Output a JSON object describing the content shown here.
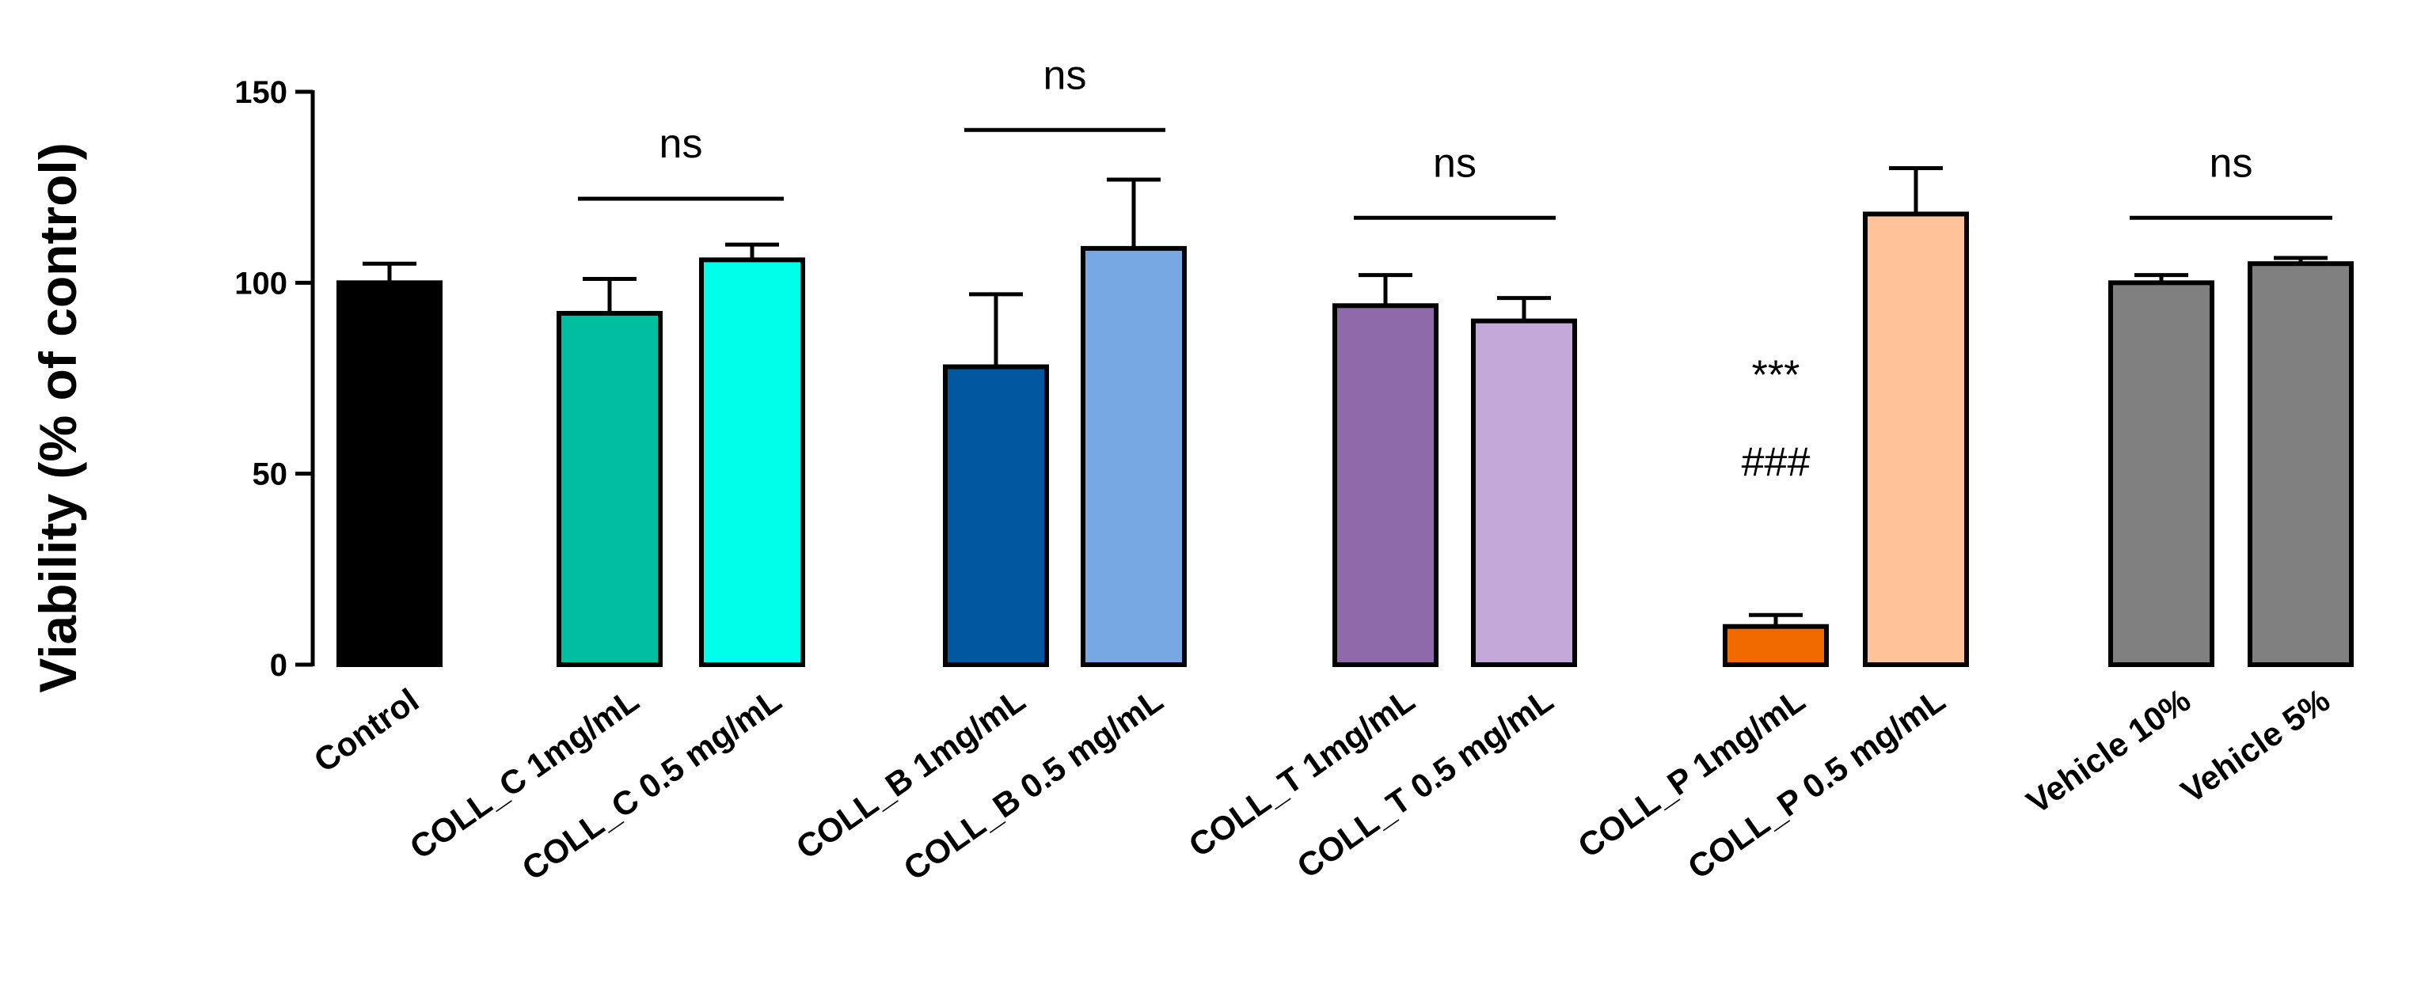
{
  "chart_data": {
    "type": "bar",
    "title": "",
    "xlabel": "",
    "ylabel": "Viability (% of control)",
    "ylim": [
      0,
      150
    ],
    "yticks": [
      0,
      50,
      100,
      150
    ],
    "grid": false,
    "bars": [
      {
        "category": "Control",
        "value": 100,
        "error": 5,
        "color": "#000000"
      },
      {
        "category": "COLL_C 1mg/mL",
        "value": 92,
        "error": 9,
        "color": "#00BFA0"
      },
      {
        "category": "COLL_C 0.5 mg/mL",
        "value": 106,
        "error": 4,
        "color": "#00FFE8"
      },
      {
        "category": "COLL_B 1mg/mL",
        "value": 78,
        "error": 19,
        "color": "#0057A0"
      },
      {
        "category": "COLL_B 0.5 mg/mL",
        "value": 109,
        "error": 18,
        "color": "#78A8E4"
      },
      {
        "category": "COLL_T 1mg/mL",
        "value": 94,
        "error": 8,
        "color": "#8E6AAA"
      },
      {
        "category": "COLL_T 0.5 mg/mL",
        "value": 90,
        "error": 6,
        "color": "#C4A8DA"
      },
      {
        "category": "COLL_P 1mg/mL",
        "value": 10,
        "error": 3,
        "color": "#F06A00"
      },
      {
        "category": "COLL_P 0.5 mg/mL",
        "value": 118,
        "error": 12,
        "color": "#FFC299"
      },
      {
        "category": "Vehicle 10%",
        "value": 100,
        "error": 2,
        "color": "#808080"
      },
      {
        "category": "Vehicle 5%",
        "value": 105,
        "error": 1.5,
        "color": "#808080"
      }
    ],
    "comparisons": [
      {
        "from": 1,
        "to": 2,
        "y": 122,
        "label": "ns"
      },
      {
        "from": 3,
        "to": 4,
        "y": 140,
        "label": "ns"
      },
      {
        "from": 5,
        "to": 6,
        "y": 117,
        "label": "ns"
      },
      {
        "from": 9,
        "to": 10,
        "y": 117,
        "label": "ns"
      }
    ],
    "annotations": [
      {
        "bar": 7,
        "label": "***"
      },
      {
        "bar": 7,
        "label": "###"
      }
    ]
  }
}
